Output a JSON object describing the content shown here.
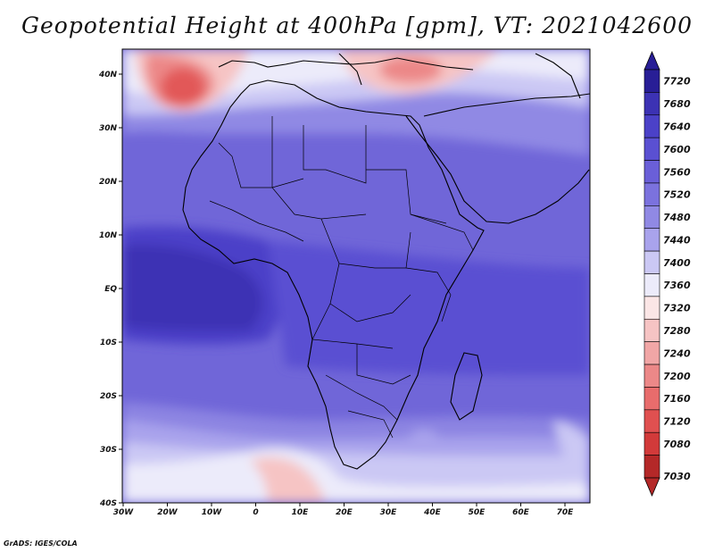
{
  "title": "Geopotential Height at 400hPa [gpm], VT: 2021042600",
  "credit": "GrADS: IGES/COLA",
  "map": {
    "lat_labels": [
      "40N",
      "30N",
      "20N",
      "10N",
      "EQ",
      "10S",
      "20S",
      "30S",
      "40S"
    ],
    "lon_labels": [
      "30W",
      "20W",
      "10W",
      "0",
      "10E",
      "20E",
      "30E",
      "40E",
      "50E",
      "60E",
      "70E"
    ]
  },
  "colorbar": {
    "levels": [
      "7720",
      "7680",
      "7640",
      "7600",
      "7560",
      "7520",
      "7480",
      "7440",
      "7400",
      "7360",
      "7320",
      "7280",
      "7240",
      "7200",
      "7160",
      "7120",
      "7080",
      "7030"
    ],
    "colors": [
      "#281e96",
      "#3c32b4",
      "#4b41c8",
      "#5a50d2",
      "#6a5fd8",
      "#7b72de",
      "#9089e4",
      "#a9a3ec",
      "#cbc8f4",
      "#ecebfa",
      "#fbe6e6",
      "#f6c4c4",
      "#f1a6a6",
      "#ec8888",
      "#e86c6c",
      "#e05050",
      "#d23a3a",
      "#b42828"
    ]
  }
}
